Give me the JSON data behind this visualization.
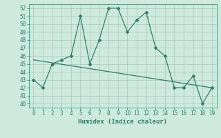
{
  "x": [
    0,
    1,
    2,
    3,
    4,
    5,
    6,
    7,
    8,
    9,
    10,
    11,
    12,
    13,
    14,
    15,
    16,
    17,
    18,
    19
  ],
  "y_main": [
    43,
    42,
    45,
    45.5,
    46,
    51,
    45,
    48,
    52,
    52,
    49,
    50.5,
    51.5,
    47,
    46,
    42,
    42,
    43.5,
    40,
    42
  ],
  "trend_x": [
    0,
    19
  ],
  "trend_y": [
    45.5,
    42.0
  ],
  "xlabel": "Humidex (Indice chaleur)",
  "xlim": [
    -0.5,
    19.5
  ],
  "ylim": [
    39.5,
    52.5
  ],
  "yticks": [
    40,
    41,
    42,
    43,
    44,
    45,
    46,
    47,
    48,
    49,
    50,
    51,
    52
  ],
  "xticks": [
    0,
    1,
    2,
    3,
    4,
    5,
    6,
    7,
    8,
    9,
    10,
    11,
    12,
    13,
    14,
    15,
    16,
    17,
    18,
    19
  ],
  "line_color": "#2e7d6e",
  "bg_color": "#ceeade",
  "grid_color": "#aacaba"
}
